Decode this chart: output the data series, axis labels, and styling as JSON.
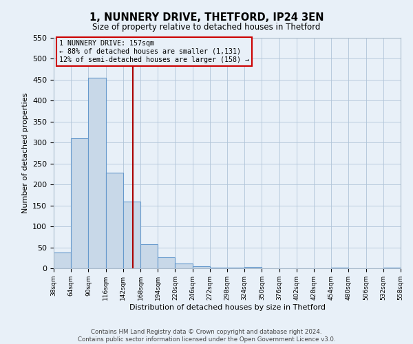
{
  "title": "1, NUNNERY DRIVE, THETFORD, IP24 3EN",
  "subtitle": "Size of property relative to detached houses in Thetford",
  "xlabel": "Distribution of detached houses by size in Thetford",
  "ylabel": "Number of detached properties",
  "footer_line1": "Contains HM Land Registry data © Crown copyright and database right 2024.",
  "footer_line2": "Contains public sector information licensed under the Open Government Licence v3.0.",
  "bin_edges": [
    38,
    64,
    90,
    116,
    142,
    168,
    194,
    220,
    246,
    272,
    298,
    324,
    350,
    376,
    402,
    428,
    454,
    480,
    506,
    532,
    558
  ],
  "bar_heights": [
    38,
    310,
    455,
    228,
    160,
    57,
    26,
    12,
    5,
    2,
    2,
    3,
    0,
    0,
    0,
    0,
    2,
    0,
    0,
    2
  ],
  "bar_facecolor": "#c8d8e8",
  "bar_edgecolor": "#6699cc",
  "grid_color": "#b0c4d8",
  "bg_color": "#e8f0f8",
  "vline_x": 157,
  "vline_color": "#aa0000",
  "annotation_title": "1 NUNNERY DRIVE: 157sqm",
  "annotation_line1": "← 88% of detached houses are smaller (1,131)",
  "annotation_line2": "12% of semi-detached houses are larger (158) →",
  "annotation_box_edgecolor": "#cc0000",
  "ylim": [
    0,
    550
  ],
  "yticks": [
    0,
    50,
    100,
    150,
    200,
    250,
    300,
    350,
    400,
    450,
    500,
    550
  ]
}
